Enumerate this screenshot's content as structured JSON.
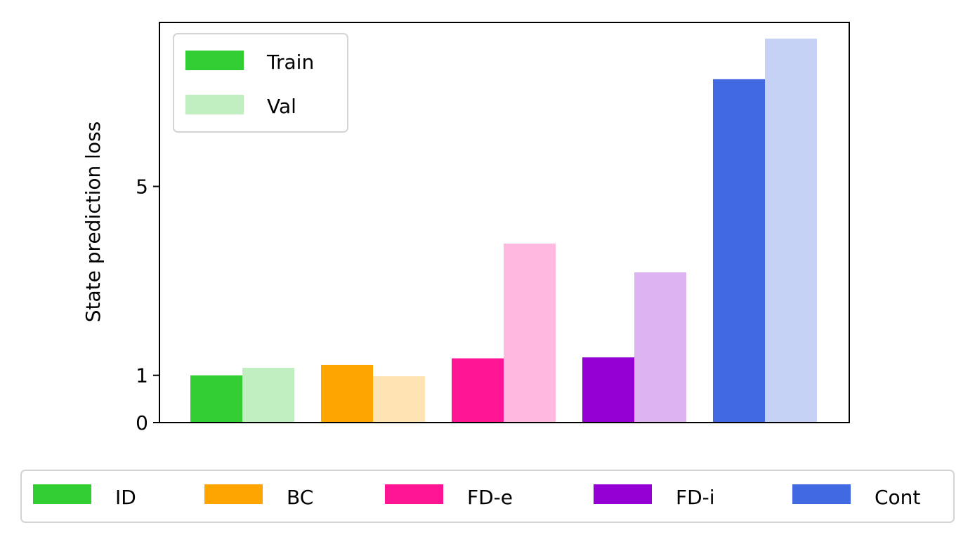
{
  "chart_data": {
    "type": "bar",
    "ylabel": "State prediction loss",
    "ylim": [
      0,
      8.1
    ],
    "yticks": [
      0,
      1,
      5
    ],
    "grid": false,
    "categories": [
      "ID",
      "BC",
      "FD-e",
      "FD-i",
      "Cont"
    ],
    "series": [
      {
        "name": "Train",
        "values": [
          1.0,
          1.22,
          1.36,
          1.38,
          7.27
        ]
      },
      {
        "name": "Val",
        "values": [
          1.16,
          0.98,
          3.79,
          3.18,
          8.13
        ]
      }
    ],
    "category_colors": {
      "ID": {
        "train": "#32CD32",
        "val": "#C2EFC2"
      },
      "BC": {
        "train": "#FFA500",
        "val": "#FFE4B3"
      },
      "FD-e": {
        "train": "#FF1493",
        "val": "#FFB9DE"
      },
      "FD-i": {
        "train": "#9400D3",
        "val": "#DEB3F1"
      },
      "Cont": {
        "train": "#4169E1",
        "val": "#C5D2F6"
      }
    },
    "legend_top": {
      "placement": "upper-left",
      "entries": [
        {
          "label": "Train",
          "color": "#32CD32"
        },
        {
          "label": "Val",
          "color": "#C2EFC2"
        }
      ]
    },
    "legend_bottom": {
      "placement": "bottom-center",
      "entries": [
        {
          "label": "ID",
          "color": "#32CD32"
        },
        {
          "label": "BC",
          "color": "#FFA500"
        },
        {
          "label": "FD-e",
          "color": "#FF1493"
        },
        {
          "label": "FD-i",
          "color": "#9400D3"
        },
        {
          "label": "Cont",
          "color": "#4169E1"
        }
      ]
    }
  }
}
